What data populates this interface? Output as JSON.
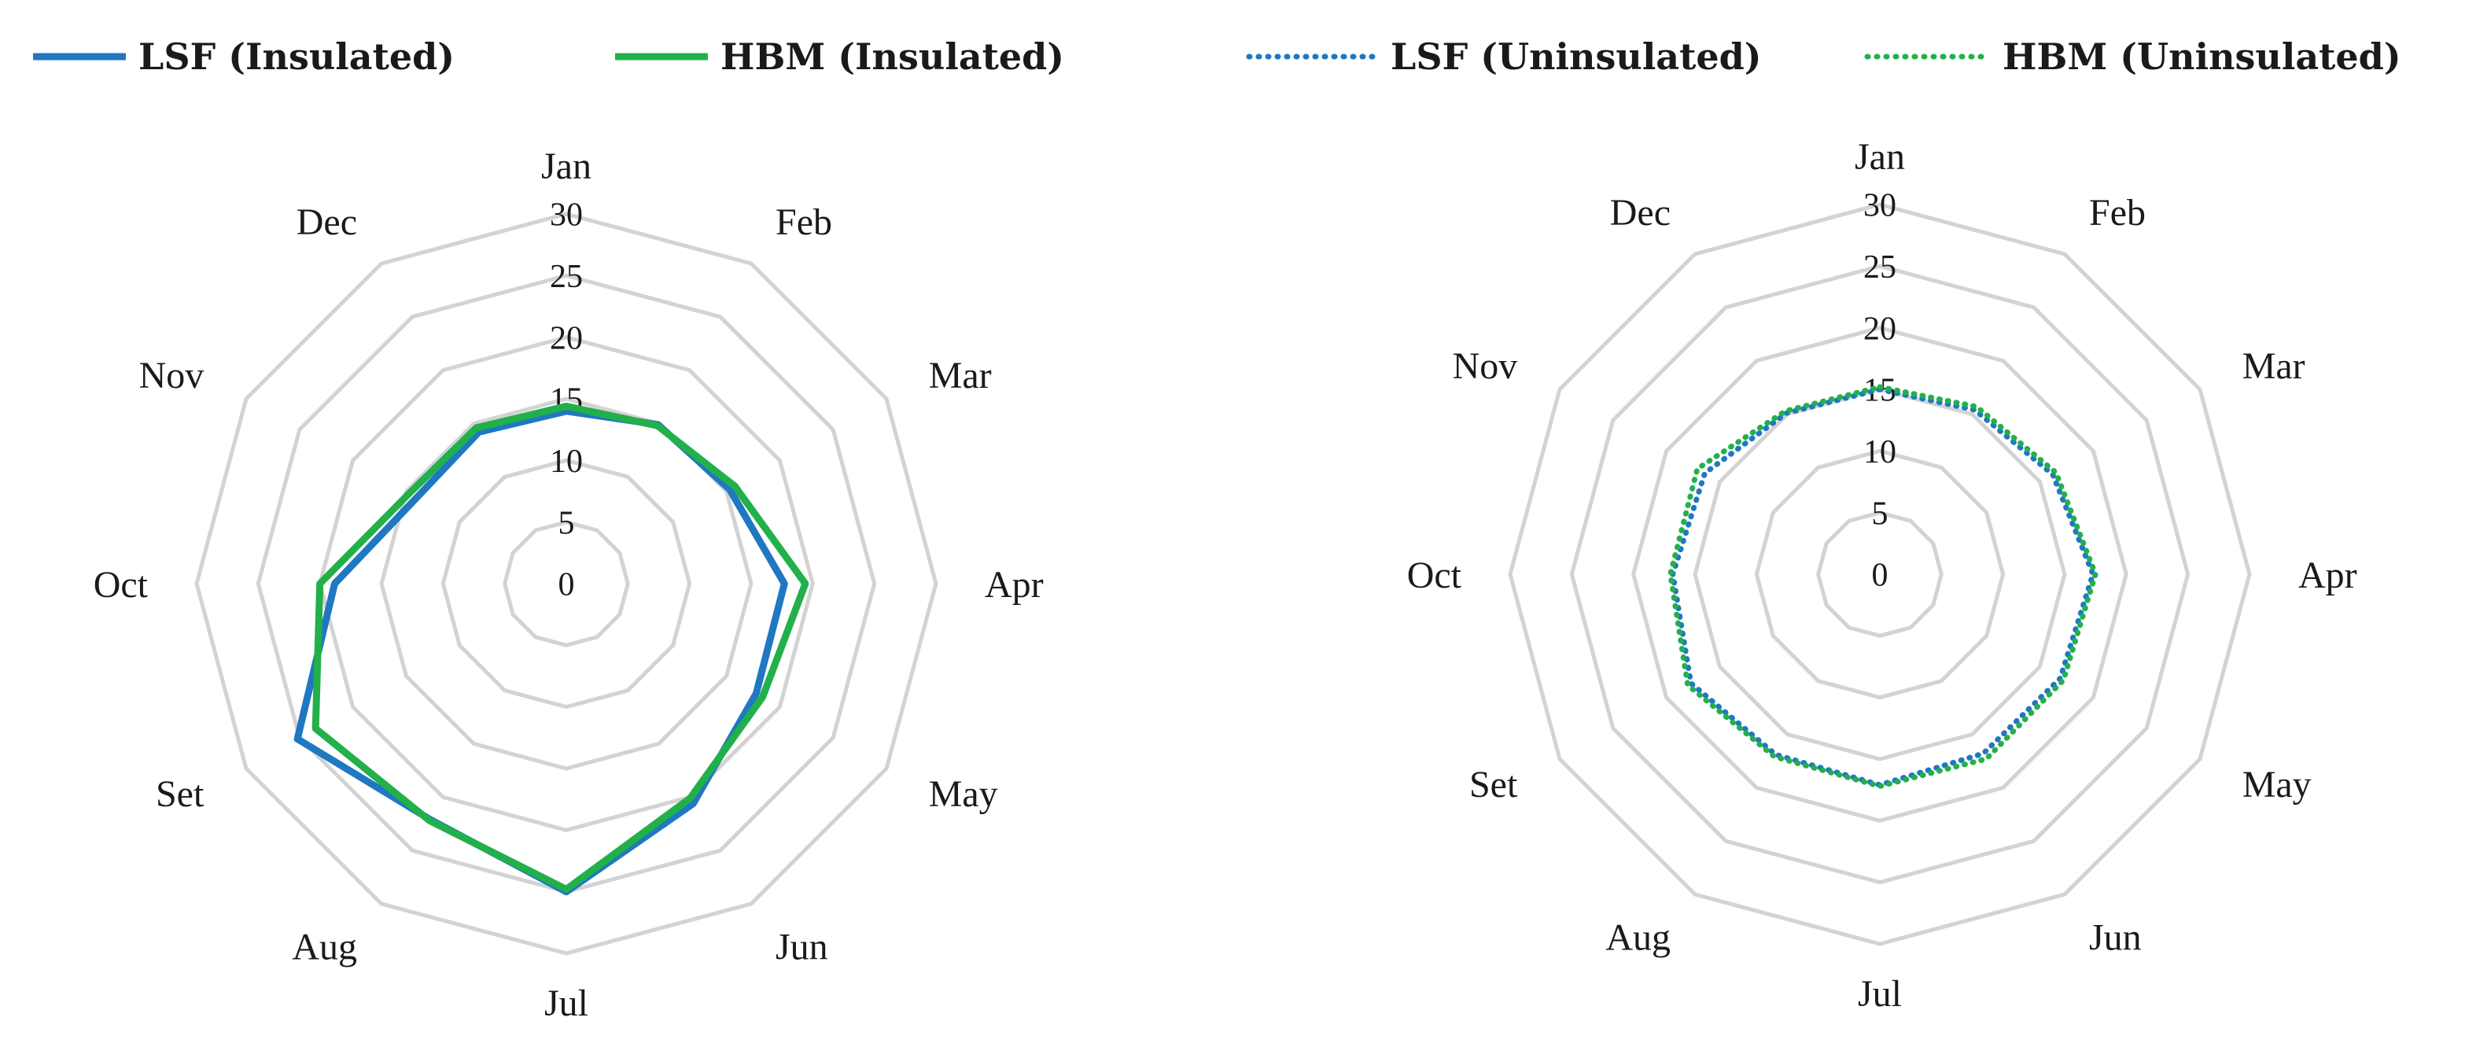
{
  "chart_data": [
    {
      "type": "radar",
      "categories": [
        "Jan",
        "Feb",
        "Mar",
        "Apr",
        "May",
        "Jun",
        "Jul",
        "Aug",
        "Set",
        "Oct",
        "Nov",
        "Dec"
      ],
      "rlim": [
        0,
        30
      ],
      "rticks": [
        "0",
        "5",
        "10",
        "15",
        "20",
        "25",
        "30"
      ],
      "grid": true,
      "series": [
        {
          "name": "LSF (Insulated)",
          "values": [
            14.0,
            14.9,
            15.3,
            17.7,
            17.8,
            20.6,
            25.0,
            22.1,
            25.2,
            18.8,
            14.0,
            14.2
          ],
          "color": "#1f78c1",
          "dash": "solid"
        },
        {
          "name": "HBM (Insulated)",
          "values": [
            14.4,
            14.8,
            15.8,
            19.4,
            18.4,
            20.1,
            24.8,
            22.2,
            23.5,
            20.0,
            14.7,
            14.6
          ],
          "color": "#22b04b",
          "dash": "solid"
        }
      ]
    },
    {
      "type": "radar",
      "categories": [
        "Jan",
        "Feb",
        "Mar",
        "Apr",
        "May",
        "Jun",
        "Jul",
        "Aug",
        "Set",
        "Oct",
        "Nov",
        "Dec"
      ],
      "rlim": [
        0,
        30
      ],
      "rticks": [
        "0",
        "5",
        "10",
        "15",
        "20",
        "25",
        "30"
      ],
      "grid": true,
      "series": [
        {
          "name": "LSF (Uninsulated)",
          "values": [
            15.0,
            15.4,
            16.2,
            17.3,
            16.9,
            16.8,
            17.1,
            16.9,
            17.7,
            16.8,
            16.4,
            15.1
          ],
          "color": "#1f78c1",
          "dash": "dotted"
        },
        {
          "name": "HBM (Uninsulated)",
          "values": [
            15.2,
            15.7,
            16.5,
            17.5,
            17.2,
            17.3,
            17.2,
            17.1,
            18.0,
            17.0,
            17.1,
            15.3
          ],
          "color": "#22b04b",
          "dash": "dotted"
        }
      ]
    }
  ],
  "legend": [
    {
      "label": "LSF (Insulated)",
      "color": "#1f78c1",
      "dash": "solid"
    },
    {
      "label": "HBM (Insulated)",
      "color": "#22b04b",
      "dash": "solid"
    },
    {
      "label": "LSF (Uninsulated)",
      "color": "#1f78c1",
      "dash": "dotted"
    },
    {
      "label": "HBM (Uninsulated)",
      "color": "#22b04b",
      "dash": "dotted"
    }
  ],
  "gridColor": "#d3d3d3"
}
